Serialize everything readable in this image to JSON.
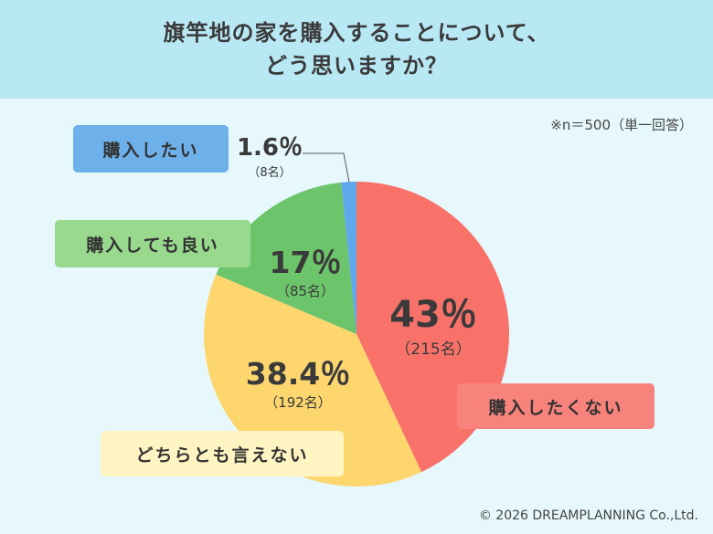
{
  "title": {
    "line1": "旗竿地の家を購入することについて、",
    "line2": "どう思いますか？"
  },
  "note": "※n＝500（単一回答）",
  "footer": "© 2026 DREAMPLANNING Co.,Ltd.",
  "chart_data": {
    "type": "pie",
    "title": "旗竿地の家を購入することについて、どう思いますか？",
    "slices": [
      {
        "label": "購入したくない",
        "percent": 43,
        "percent_text": "43％",
        "count": 215,
        "count_text": "（215名）",
        "color": "#f8726a"
      },
      {
        "label": "どちらとも言えない",
        "percent": 38.4,
        "percent_text": "38.4％",
        "count": 192,
        "count_text": "（192名）",
        "color": "#fdd66e"
      },
      {
        "label": "購入しても良い",
        "percent": 17,
        "percent_text": "17％",
        "count": 85,
        "count_text": "（85名）",
        "color": "#6cc46b"
      },
      {
        "label": "購入したい",
        "percent": 1.6,
        "percent_text": "1.6％",
        "count": 8,
        "count_text": "（8名）",
        "color": "#5fa8ec"
      }
    ],
    "label_box_colors": [
      "#f8837c",
      "#fff4c2",
      "#98d98e",
      "#6eb1ea"
    ]
  }
}
